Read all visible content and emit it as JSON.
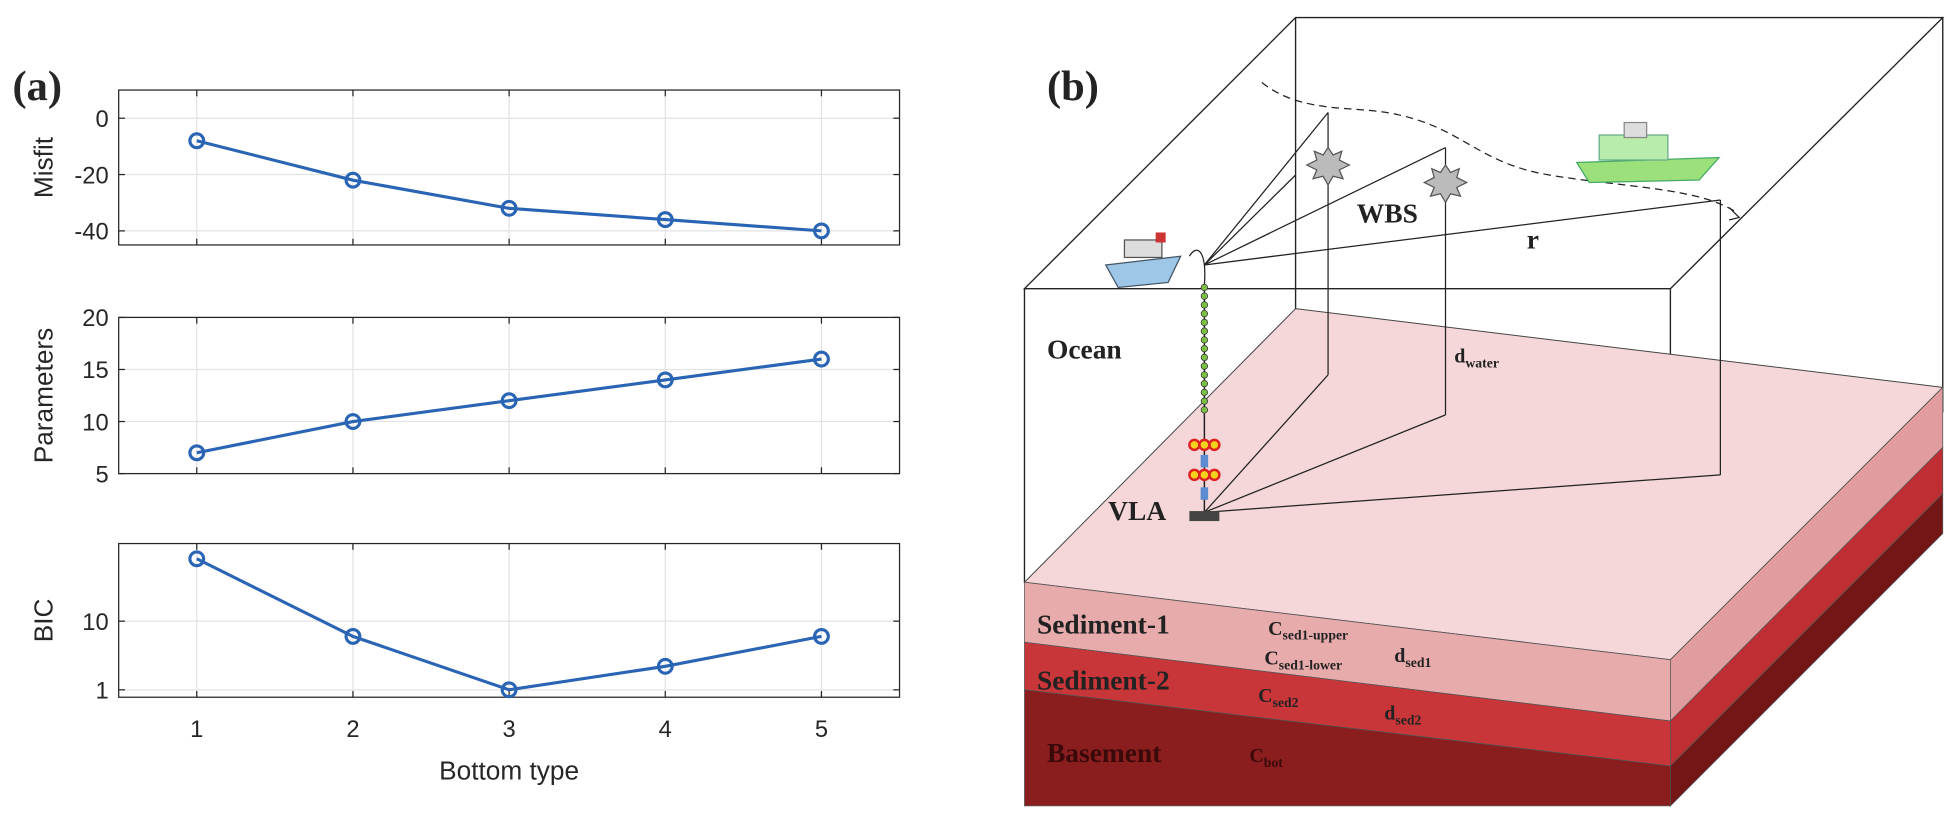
{
  "figure": {
    "label_a": "(a)"
  },
  "chart_data": [
    {
      "type": "line",
      "ylabel": "Misfit",
      "x": [
        1,
        2,
        3,
        4,
        5
      ],
      "values": [
        -8,
        -22,
        -32,
        -36,
        -40
      ],
      "xlim": [
        0.5,
        5.5
      ],
      "xticks": [
        1,
        2,
        3,
        4,
        5
      ],
      "ylim": [
        -45,
        10
      ],
      "yticks": [
        -40,
        -20,
        0
      ],
      "color": "#2a64b4",
      "grid": true,
      "show_xtick_labels": false
    },
    {
      "type": "line",
      "ylabel": "Parameters",
      "x": [
        1,
        2,
        3,
        4,
        5
      ],
      "values": [
        7,
        10,
        12,
        14,
        16
      ],
      "xlim": [
        0.5,
        5.5
      ],
      "xticks": [
        1,
        2,
        3,
        4,
        5
      ],
      "ylim": [
        5,
        20
      ],
      "yticks": [
        5,
        10,
        15,
        20
      ],
      "color": "#2a64b4",
      "grid": true,
      "show_xtick_labels": false
    },
    {
      "type": "line",
      "ylabel": "BIC",
      "xlabel": "Bottom type",
      "x": [
        1,
        2,
        3,
        4,
        5
      ],
      "values": [
        81,
        6,
        1,
        2.2,
        6
      ],
      "xlim": [
        0.5,
        5.5
      ],
      "xticks": [
        1,
        2,
        3,
        4,
        5
      ],
      "ylim": [
        0.78,
        135
      ],
      "yticks": [
        1,
        10
      ],
      "log_scale": true,
      "color": "#2a64b4",
      "grid": true,
      "show_xtick_labels": true
    }
  ],
  "diagram": {
    "label": "(b)",
    "wbs": "WBS",
    "range": "r",
    "ocean": "Ocean",
    "vla": "VLA",
    "d_water": {
      "base": "d",
      "sub": "water"
    },
    "sediment1": "Sediment-1",
    "sediment2": "Sediment-2",
    "basement": "Basement",
    "c_sed1_upper": {
      "base": "C",
      "sub": "sed1-upper"
    },
    "c_sed1_lower": {
      "base": "C",
      "sub": "sed1-lower"
    },
    "d_sed1": {
      "base": "d",
      "sub": "sed1"
    },
    "c_sed2": {
      "base": "C",
      "sub": "sed2"
    },
    "d_sed2": {
      "base": "d",
      "sub": "sed2"
    },
    "c_bot": {
      "base": "C",
      "sub": "bot"
    }
  }
}
